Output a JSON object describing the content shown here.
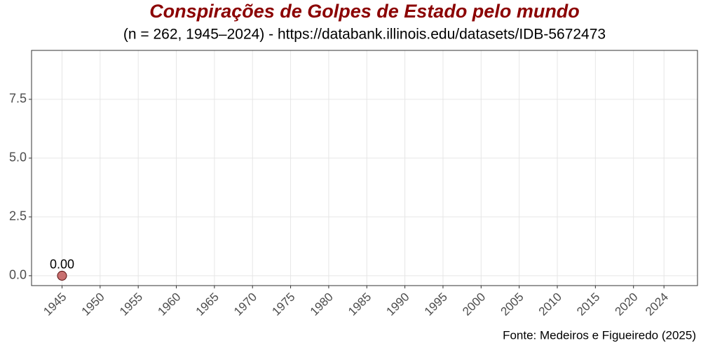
{
  "chart_data": {
    "type": "scatter",
    "title": "Conspirações de Golpes de Estado pelo mundo",
    "subtitle": "(n = 262, 1945–2024) - https://databank.illinois.edu/datasets/IDB-5672473",
    "caption": "Fonte: Medeiros e Figueiredo (2025)",
    "x": [
      1945
    ],
    "values": [
      0
    ],
    "value_labels": [
      "0.00"
    ],
    "color": "#c87070",
    "xlim": [
      1941,
      2028.4
    ],
    "ylim": [
      -0.42,
      9.58
    ],
    "xticks": [
      1945,
      1950,
      1955,
      1960,
      1965,
      1970,
      1975,
      1980,
      1985,
      1990,
      1995,
      2000,
      2005,
      2010,
      2015,
      2020,
      2024
    ],
    "yticks": [
      {
        "value": 0,
        "label": "0.0"
      },
      {
        "value": 2.5,
        "label": "2.5"
      },
      {
        "value": 5,
        "label": "5.0"
      },
      {
        "value": 7.5,
        "label": "7.5"
      }
    ],
    "grid": true
  }
}
